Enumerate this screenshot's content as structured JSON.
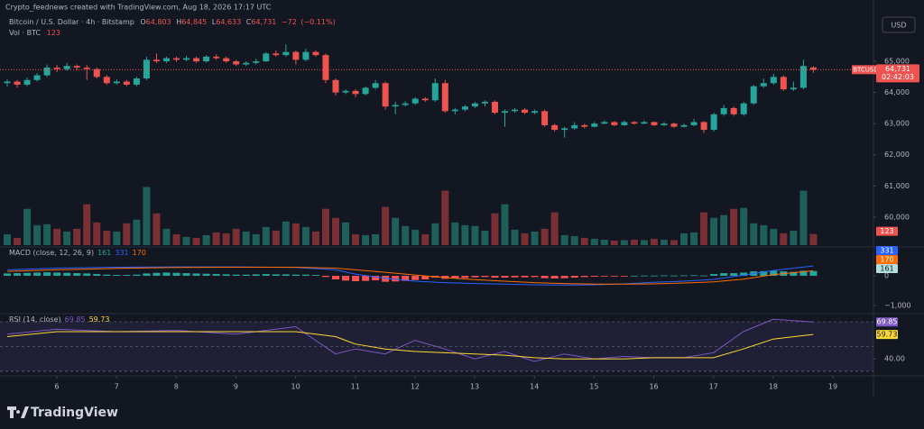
{
  "header": {
    "credit": "Crypto_feednews created with TradingView.com, Aug 18, 2026 17:17 UTC",
    "symbol": "Bitcoin / U.S. Dollar · 4h · Bitstamp",
    "ohlc": [
      {
        "label": "O",
        "value": "64,803"
      },
      {
        "label": "H",
        "value": "64,845"
      },
      {
        "label": "L",
        "value": "64,633"
      },
      {
        "label": "C",
        "value": "64,731"
      }
    ],
    "change": "−72",
    "change_pct": "(−0.11%)",
    "volume_label": "Vol · BTC",
    "volume_last": "123",
    "currency": "USD",
    "price_tag": {
      "symbol": "BTCUSD",
      "price": "64,731",
      "countdown": "02:42:03"
    },
    "brand": "TradingView"
  },
  "chart_data": [
    {
      "type": "candlestick",
      "up_color": "#26a69a",
      "down_color": "#ef5350",
      "volume_up_color": "#1f5f5a",
      "volume_down_color": "#7a2f35",
      "xlim": [
        5.048,
        19.68
      ],
      "xticks": [
        6,
        7,
        8,
        9,
        10,
        11,
        12,
        13,
        14,
        15,
        16,
        17,
        18,
        19
      ],
      "ylim": [
        59100,
        66100
      ],
      "yticks": [
        {
          "value": 60000,
          "label": "60,000"
        },
        {
          "value": 61000,
          "label": "61,000"
        },
        {
          "value": 62000,
          "label": "62,000"
        },
        {
          "value": 63000,
          "label": "63,000"
        },
        {
          "value": 64000,
          "label": "64,000"
        },
        {
          "value": 65000,
          "label": "65,000"
        }
      ],
      "volume_ylim": [
        0,
        2400
      ],
      "candles": [
        [
          64300,
          64420,
          64180,
          64350
        ],
        [
          64350,
          64400,
          64150,
          64250
        ],
        [
          64250,
          64480,
          64200,
          64400
        ],
        [
          64400,
          64620,
          64350,
          64550
        ],
        [
          64550,
          64900,
          64500,
          64800
        ],
        [
          64800,
          64880,
          64650,
          64750
        ],
        [
          64750,
          64950,
          64700,
          64850
        ],
        [
          64850,
          64900,
          64720,
          64800
        ],
        [
          64800,
          64880,
          64400,
          64750
        ],
        [
          64750,
          64800,
          64450,
          64500
        ],
        [
          64500,
          64560,
          64250,
          64300
        ],
        [
          64300,
          64420,
          64250,
          64350
        ],
        [
          64350,
          64400,
          64200,
          64250
        ],
        [
          64250,
          64500,
          64200,
          64450
        ],
        [
          64450,
          65150,
          64400,
          65050
        ],
        [
          65050,
          65250,
          64950,
          65000
        ],
        [
          65000,
          65150,
          64950,
          65100
        ],
        [
          65100,
          65150,
          64980,
          65050
        ],
        [
          65050,
          65180,
          65000,
          65100
        ],
        [
          65100,
          65150,
          64950,
          65000
        ],
        [
          65000,
          65200,
          64960,
          65150
        ],
        [
          65150,
          65220,
          65050,
          65100
        ],
        [
          65100,
          65150,
          64950,
          65000
        ],
        [
          65000,
          65050,
          64850,
          64900
        ],
        [
          64900,
          65000,
          64850,
          64950
        ],
        [
          64950,
          65080,
          64900,
          65000
        ],
        [
          65000,
          65300,
          64980,
          65250
        ],
        [
          65250,
          65350,
          65150,
          65200
        ],
        [
          65200,
          65550,
          65150,
          65300
        ],
        [
          65300,
          65350,
          64900,
          65050
        ],
        [
          65050,
          65400,
          65000,
          65300
        ],
        [
          65300,
          65350,
          65150,
          65200
        ],
        [
          65200,
          65250,
          64300,
          64400
        ],
        [
          64400,
          64450,
          63900,
          64000
        ],
        [
          64000,
          64100,
          63950,
          64050
        ],
        [
          64050,
          64100,
          63850,
          63950
        ],
        [
          63950,
          64200,
          63900,
          64150
        ],
        [
          64150,
          64400,
          64100,
          64300
        ],
        [
          64300,
          64350,
          63450,
          63550
        ],
        [
          63550,
          63700,
          63300,
          63600
        ],
        [
          63600,
          63720,
          63550,
          63650
        ],
        [
          63650,
          63850,
          63600,
          63800
        ],
        [
          63800,
          63850,
          63700,
          63750
        ],
        [
          63750,
          64450,
          63700,
          64300
        ],
        [
          64300,
          64400,
          63350,
          63400
        ],
        [
          63400,
          63500,
          63300,
          63450
        ],
        [
          63450,
          63600,
          63400,
          63550
        ],
        [
          63550,
          63700,
          63500,
          63650
        ],
        [
          63650,
          63750,
          63550,
          63700
        ],
        [
          63700,
          63750,
          63300,
          63350
        ],
        [
          63350,
          63450,
          62900,
          63400
        ],
        [
          63400,
          63500,
          63350,
          63450
        ],
        [
          63450,
          63500,
          63300,
          63350
        ],
        [
          63350,
          63450,
          63300,
          63400
        ],
        [
          63400,
          63450,
          62900,
          62950
        ],
        [
          62950,
          63000,
          62750,
          62800
        ],
        [
          62800,
          62900,
          62550,
          62850
        ],
        [
          62850,
          63050,
          62800,
          62950
        ],
        [
          62950,
          63000,
          62850,
          62900
        ],
        [
          62900,
          63050,
          62880,
          63000
        ],
        [
          63000,
          63100,
          62980,
          63050
        ],
        [
          63050,
          63080,
          62920,
          62950
        ],
        [
          62950,
          63100,
          62930,
          63050
        ],
        [
          63050,
          63080,
          62970,
          63000
        ],
        [
          63000,
          63100,
          62980,
          63050
        ],
        [
          63050,
          63070,
          62920,
          62950
        ],
        [
          62950,
          63050,
          62930,
          63000
        ],
        [
          63000,
          63030,
          62870,
          62900
        ],
        [
          62900,
          63000,
          62880,
          62950
        ],
        [
          62950,
          63150,
          62920,
          63050
        ],
        [
          63050,
          63080,
          62700,
          62800
        ],
        [
          62800,
          63350,
          62750,
          63300
        ],
        [
          63300,
          63600,
          63250,
          63500
        ],
        [
          63500,
          63550,
          63250,
          63300
        ],
        [
          63300,
          63700,
          63250,
          63650
        ],
        [
          63650,
          64250,
          63600,
          64200
        ],
        [
          64200,
          64450,
          64150,
          64300
        ],
        [
          64300,
          64600,
          64250,
          64500
        ],
        [
          64500,
          64550,
          64050,
          64100
        ],
        [
          64100,
          64350,
          64050,
          64150
        ],
        [
          64150,
          65050,
          64100,
          64850
        ],
        [
          64803,
          64845,
          64633,
          64731
        ]
      ],
      "volume": [
        120,
        80,
        400,
        220,
        230,
        180,
        150,
        180,
        450,
        250,
        160,
        150,
        240,
        280,
        640,
        350,
        180,
        120,
        90,
        80,
        110,
        140,
        130,
        180,
        150,
        120,
        200,
        160,
        260,
        240,
        200,
        150,
        400,
        300,
        250,
        120,
        110,
        120,
        420,
        300,
        210,
        170,
        120,
        240,
        600,
        250,
        220,
        210,
        160,
        350,
        450,
        170,
        130,
        150,
        180,
        360,
        110,
        100,
        80,
        70,
        60,
        50,
        55,
        60,
        55,
        70,
        60,
        55,
        130,
        140,
        360,
        300,
        330,
        400,
        410,
        240,
        220,
        180,
        130,
        160,
        600,
        123
      ]
    },
    {
      "type": "macd",
      "title": "MACD (close, 12, 26, 9)",
      "histogram_label": "161",
      "macd_label": "331",
      "signal_label": "170",
      "histogram_up_color": "#26a69a",
      "histogram_down_color": "#ff5252",
      "macd_color": "#2962ff",
      "signal_color": "#ff6d00",
      "ylim": [
        -1240,
        940
      ],
      "yticks": [
        0,
        {
          "value": -1000,
          "label": "−1,000"
        }
      ],
      "histogram": [
        80,
        90,
        100,
        110,
        120,
        110,
        100,
        90,
        80,
        60,
        40,
        30,
        30,
        40,
        80,
        100,
        110,
        100,
        90,
        80,
        70,
        60,
        50,
        40,
        40,
        50,
        60,
        50,
        50,
        40,
        40,
        30,
        -40,
        -120,
        -160,
        -180,
        -170,
        -150,
        -200,
        -190,
        -170,
        -140,
        -120,
        -60,
        -100,
        -90,
        -70,
        -50,
        -40,
        -60,
        -60,
        -50,
        -50,
        -40,
        -80,
        -90,
        -80,
        -60,
        -40,
        -30,
        -20,
        -10,
        -5,
        5,
        10,
        10,
        15,
        10,
        15,
        20,
        10,
        60,
        90,
        90,
        110,
        150,
        160,
        170,
        150,
        130,
        170,
        161
      ],
      "x": [
        5.17,
        6,
        7,
        8,
        9,
        10,
        10.67,
        11,
        11.5,
        12,
        12.5,
        13,
        13.5,
        14,
        14.5,
        15,
        15.5,
        16,
        16.5,
        17,
        17.5,
        18,
        18.67
      ],
      "macd": [
        200,
        260,
        290,
        300,
        300,
        280,
        200,
        60,
        -80,
        -180,
        -230,
        -260,
        -280,
        -300,
        -310,
        -300,
        -270,
        -220,
        -180,
        -120,
        20,
        180,
        331
      ],
      "signal": [
        150,
        200,
        250,
        280,
        290,
        290,
        260,
        200,
        120,
        30,
        -60,
        -130,
        -180,
        -230,
        -260,
        -280,
        -280,
        -270,
        -240,
        -200,
        -110,
        40,
        170
      ]
    },
    {
      "type": "rsi",
      "title": "RSI (14, close)",
      "rsi_label": "69.85",
      "ma_label": "59.73",
      "rsi_color": "#7e57c2",
      "ma_color": "#fdd835",
      "ylim": [
        27.8,
        75.1
      ],
      "yticks": [
        {
          "value": 40,
          "label": "40.00"
        }
      ],
      "levels": [
        70,
        50,
        30
      ],
      "x": [
        5.17,
        6,
        7,
        8,
        9,
        10,
        10.67,
        11,
        11.5,
        12,
        12.5,
        13,
        13.5,
        14,
        14.5,
        15,
        15.5,
        16,
        16.5,
        17,
        17.5,
        18,
        18.67
      ],
      "rsi": [
        60,
        64,
        62,
        63,
        60,
        66,
        44,
        48,
        44,
        55,
        48,
        40,
        46,
        38,
        44,
        40,
        42,
        41,
        41,
        45,
        62,
        72,
        69.85
      ],
      "rsi_ma": [
        58,
        62,
        62,
        62,
        62,
        62,
        58,
        52,
        48,
        46,
        45,
        44,
        43,
        41,
        40,
        40,
        40,
        41,
        41,
        41,
        48,
        56,
        59.73
      ]
    }
  ]
}
